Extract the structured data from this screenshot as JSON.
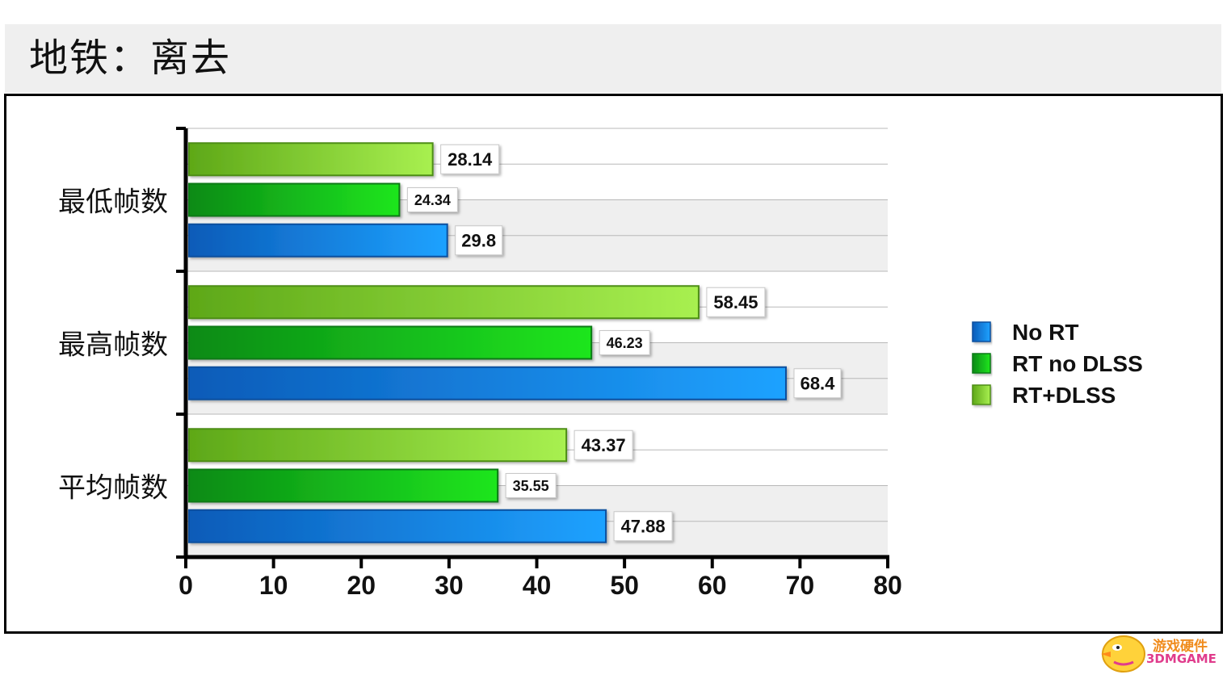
{
  "page_title": "地铁：离去",
  "chart_data": {
    "type": "bar",
    "orientation": "horizontal",
    "categories": [
      "最低帧数",
      "最高帧数",
      "平均帧数"
    ],
    "series": [
      {
        "name": "No RT",
        "color": "#1a86e8",
        "values": [
          29.8,
          68.4,
          47.88
        ],
        "labels": [
          "29.8",
          "68.4",
          "47.88"
        ]
      },
      {
        "name": "RT no DLSS",
        "color": "#14c414",
        "values": [
          24.34,
          46.23,
          35.55
        ],
        "labels": [
          "24.34",
          "46.23",
          "35.55"
        ]
      },
      {
        "name": "RT+DLSS",
        "color": "#8ed83a",
        "values": [
          28.14,
          58.45,
          43.37
        ],
        "labels": [
          "28.14",
          "58.45",
          "43.37"
        ]
      }
    ],
    "xlim": [
      0,
      80
    ],
    "xticks": [
      "0",
      "10",
      "20",
      "30",
      "40",
      "50",
      "60",
      "70",
      "80"
    ],
    "legend_position": "right",
    "grid": true
  },
  "watermark": {
    "text_cn": "游戏硬件",
    "text_en": "3DMGAME"
  }
}
